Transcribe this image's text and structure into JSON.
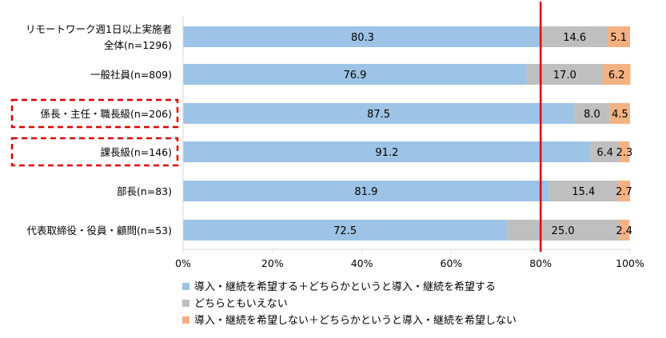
{
  "chart_data": {
    "type": "bar",
    "orientation": "horizontal",
    "stacked": true,
    "categories": [
      [
        "リモートワーク週1日以上実施者",
        "全体(n=1296)"
      ],
      [
        "一般社員(n=809)"
      ],
      [
        "係長・主任・職長級(n=206)"
      ],
      [
        "課長級(n=146)"
      ],
      [
        "部長(n=83)"
      ],
      [
        "代表取締役・役員・顧問(n=53)"
      ]
    ],
    "series": [
      {
        "name": "導入・継続を希望する＋どちらかというと導入・継続を希望する",
        "color": "#9dc3e6",
        "values": [
          80.3,
          76.9,
          87.5,
          91.2,
          81.9,
          72.5
        ]
      },
      {
        "name": "どちらともいえない",
        "color": "#bfbfbf",
        "values": [
          14.6,
          17.0,
          8.0,
          6.4,
          15.4,
          25.0
        ]
      },
      {
        "name": "導入・継続を希望しない＋どちらかというと導入・継続を希望しない",
        "color": "#f4b183",
        "values": [
          5.1,
          6.2,
          4.5,
          2.3,
          2.7,
          2.4
        ]
      }
    ],
    "xlim": [
      0,
      100
    ],
    "xticks": [
      "0%",
      "20%",
      "40%",
      "60%",
      "80%",
      "100%"
    ],
    "reference_line": {
      "x": 80,
      "color": "#e00000"
    },
    "highlighted_categories": [
      2,
      3
    ],
    "highlight_color": "#e00000",
    "grid": false,
    "legend_position": "bottom-left"
  }
}
